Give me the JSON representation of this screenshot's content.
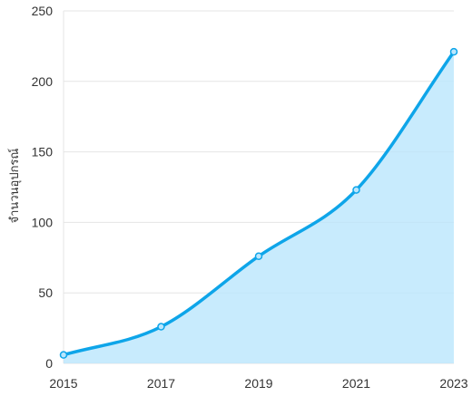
{
  "chart_data": {
    "type": "area",
    "x": [
      2015,
      2017,
      2019,
      2021,
      2023
    ],
    "series": [
      {
        "values": [
          6,
          26,
          76,
          123,
          221
        ]
      }
    ],
    "xlabel": "",
    "ylabel": "จำนวนอุปกรณ์",
    "xticks": [
      "2015",
      "2017",
      "2019",
      "2021",
      "2023"
    ],
    "yticks": [
      "0",
      "50",
      "100",
      "150",
      "200",
      "250"
    ],
    "ylim": [
      0,
      250
    ],
    "xlim": [
      2015,
      2023
    ],
    "grid": "horizontal",
    "line_color": "#0ea5e9",
    "fill_color": "#bae6fd",
    "smooth": true
  }
}
